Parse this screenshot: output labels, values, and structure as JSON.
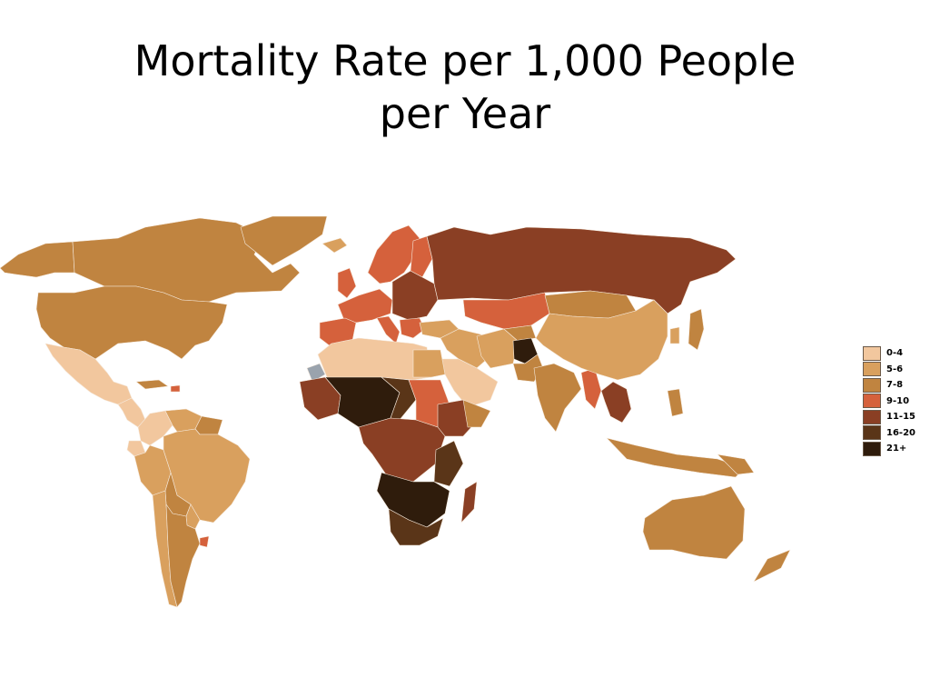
{
  "title": {
    "line1": "Mortality Rate per 1,000 People",
    "line2": "per Year"
  },
  "colors": {
    "c0_4": "#f2c79e",
    "c5_6": "#d9a05e",
    "c7_8": "#c08440",
    "c9_10": "#d5613c",
    "c11_15": "#8a3f24",
    "c16_20": "#5a3518",
    "c21plus": "#2f1c0c",
    "no_data": "#9aa3ad"
  },
  "legend": [
    {
      "label": "0-4",
      "color": "#f2c79e"
    },
    {
      "label": "5-6",
      "color": "#d9a05e"
    },
    {
      "label": "7-8",
      "color": "#c08440"
    },
    {
      "label": "9-10",
      "color": "#d5613c"
    },
    {
      "label": "11-15",
      "color": "#8a3f24"
    },
    {
      "label": "16-20",
      "color": "#5a3518"
    },
    {
      "label": "21+",
      "color": "#2f1c0c"
    }
  ]
}
